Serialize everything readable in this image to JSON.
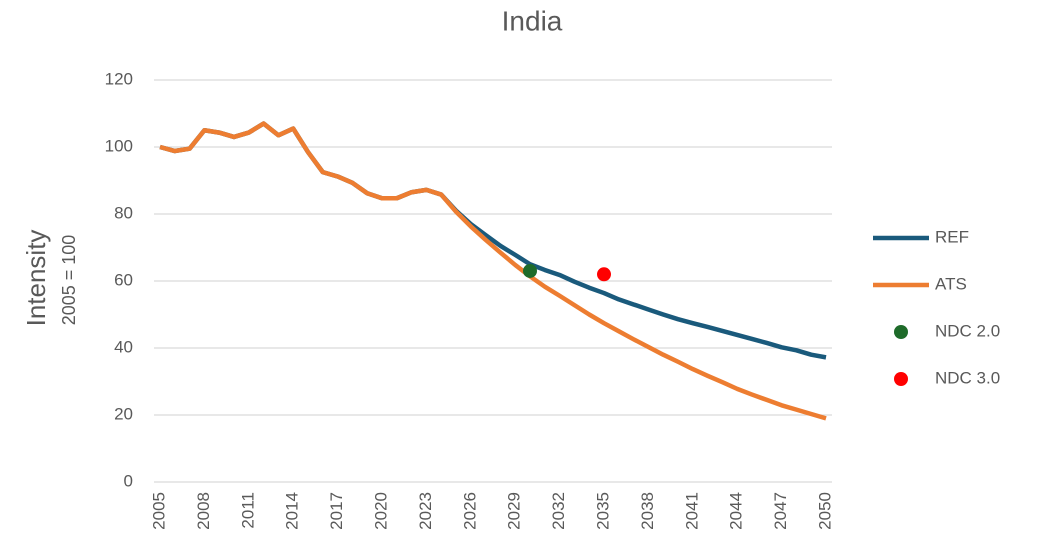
{
  "chart_data": {
    "type": "line",
    "title": "India",
    "y_label": [
      "Intensity",
      "2005 = 100"
    ],
    "x": [
      2005,
      2006,
      2007,
      2008,
      2009,
      2010,
      2011,
      2012,
      2013,
      2014,
      2015,
      2016,
      2017,
      2018,
      2019,
      2020,
      2021,
      2022,
      2023,
      2024,
      2025,
      2026,
      2027,
      2028,
      2029,
      2030,
      2031,
      2032,
      2033,
      2034,
      2035,
      2036,
      2037,
      2038,
      2039,
      2040,
      2041,
      2042,
      2043,
      2044,
      2045,
      2046,
      2047,
      2048,
      2049,
      2050
    ],
    "series": [
      {
        "name": "REF",
        "color": "#1a5a7c",
        "style": "line",
        "values": [
          100,
          98.8,
          99.5,
          105,
          104.3,
          103,
          104.3,
          107,
          103.5,
          105.5,
          98.5,
          92.5,
          91.2,
          89.3,
          86.2,
          84.7,
          84.7,
          86.5,
          87.2,
          85.8,
          81,
          77,
          73.7,
          70.5,
          67.8,
          65,
          63.3,
          61.8,
          59.8,
          58,
          56.4,
          54.5,
          53,
          51.5,
          50,
          48.6,
          47.4,
          46.3,
          45.1,
          43.9,
          42.7,
          41.5,
          40.2,
          39.3,
          38,
          37.2
        ]
      },
      {
        "name": "ATS",
        "color": "#ed7d31",
        "style": "line",
        "values": [
          100,
          98.8,
          99.5,
          105,
          104.3,
          103,
          104.3,
          107,
          103.5,
          105.5,
          98.5,
          92.5,
          91.2,
          89.3,
          86.2,
          84.7,
          84.7,
          86.5,
          87.2,
          85.8,
          80.7,
          76.3,
          72.3,
          68.5,
          64.8,
          61.4,
          58.3,
          55.6,
          52.8,
          50,
          47.4,
          45,
          42.6,
          40.3,
          38,
          35.9,
          33.7,
          31.7,
          29.8,
          27.8,
          26.1,
          24.5,
          22.9,
          21.6,
          20.3,
          19
        ]
      },
      {
        "name": "NDC 2.0",
        "color": "#1e6b2a",
        "style": "point",
        "values": [
          null,
          null,
          null,
          null,
          null,
          null,
          null,
          null,
          null,
          null,
          null,
          null,
          null,
          null,
          null,
          null,
          null,
          null,
          null,
          null,
          null,
          null,
          null,
          null,
          null,
          63,
          null,
          null,
          null,
          null,
          null,
          null,
          null,
          null,
          null,
          null,
          null,
          null,
          null,
          null,
          null,
          null,
          null,
          null,
          null,
          null
        ]
      },
      {
        "name": "NDC 3.0",
        "color": "#ff0000",
        "style": "point",
        "values": [
          null,
          null,
          null,
          null,
          null,
          null,
          null,
          null,
          null,
          null,
          null,
          null,
          null,
          null,
          null,
          null,
          null,
          null,
          null,
          null,
          null,
          null,
          null,
          null,
          null,
          null,
          null,
          null,
          null,
          null,
          62,
          null,
          null,
          null,
          null,
          null,
          null,
          null,
          null,
          null,
          null,
          null,
          null,
          null,
          null,
          null
        ]
      }
    ],
    "xlim": [
      2005,
      2050
    ],
    "xticks": [
      2005,
      2008,
      2011,
      2014,
      2017,
      2020,
      2023,
      2026,
      2029,
      2032,
      2035,
      2038,
      2041,
      2044,
      2047,
      2050
    ],
    "ylim": [
      0,
      120
    ],
    "yticks": [
      0,
      20,
      40,
      60,
      80,
      100,
      120
    ],
    "grid": true,
    "legend": "right"
  }
}
